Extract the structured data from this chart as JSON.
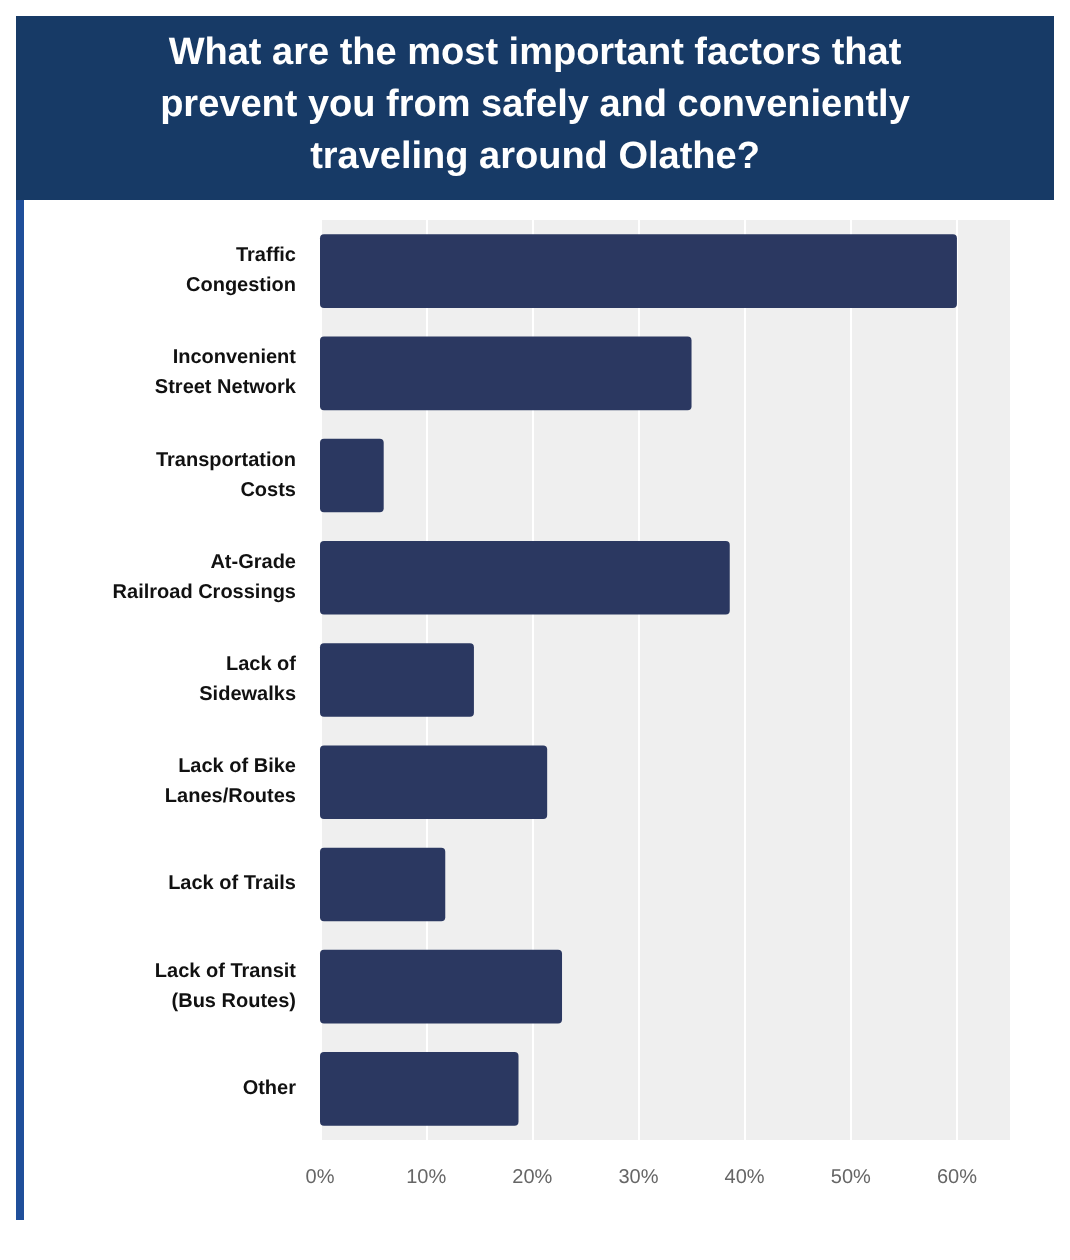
{
  "chart_data": {
    "type": "bar",
    "orientation": "horizontal",
    "title": "What are the most important factors that prevent you from safely and conveniently traveling around Olathe?",
    "categories": [
      "Traffic\nCongestion",
      "Inconvenient\nStreet Network",
      "Transportation\nCosts",
      "At-Grade\nRailroad Crossings",
      "Lack of\nSidewalks",
      "Lack of Bike\nLanes/Routes",
      "Lack of Trails",
      "Lack of Transit\n(Bus Routes)",
      "Other"
    ],
    "values": [
      60,
      35,
      6,
      38.6,
      14.5,
      21.4,
      11.8,
      22.8,
      18.7
    ],
    "color": "#2b3861",
    "xlim": [
      0,
      65
    ],
    "xticks": [
      {
        "value": 0,
        "label": "0%"
      },
      {
        "value": 10,
        "label": "10%"
      },
      {
        "value": 20,
        "label": "20%"
      },
      {
        "value": 30,
        "label": "30%"
      },
      {
        "value": 40,
        "label": "40%"
      },
      {
        "value": 50,
        "label": "50%"
      },
      {
        "value": 60,
        "label": "60%"
      }
    ],
    "grid": "x"
  }
}
